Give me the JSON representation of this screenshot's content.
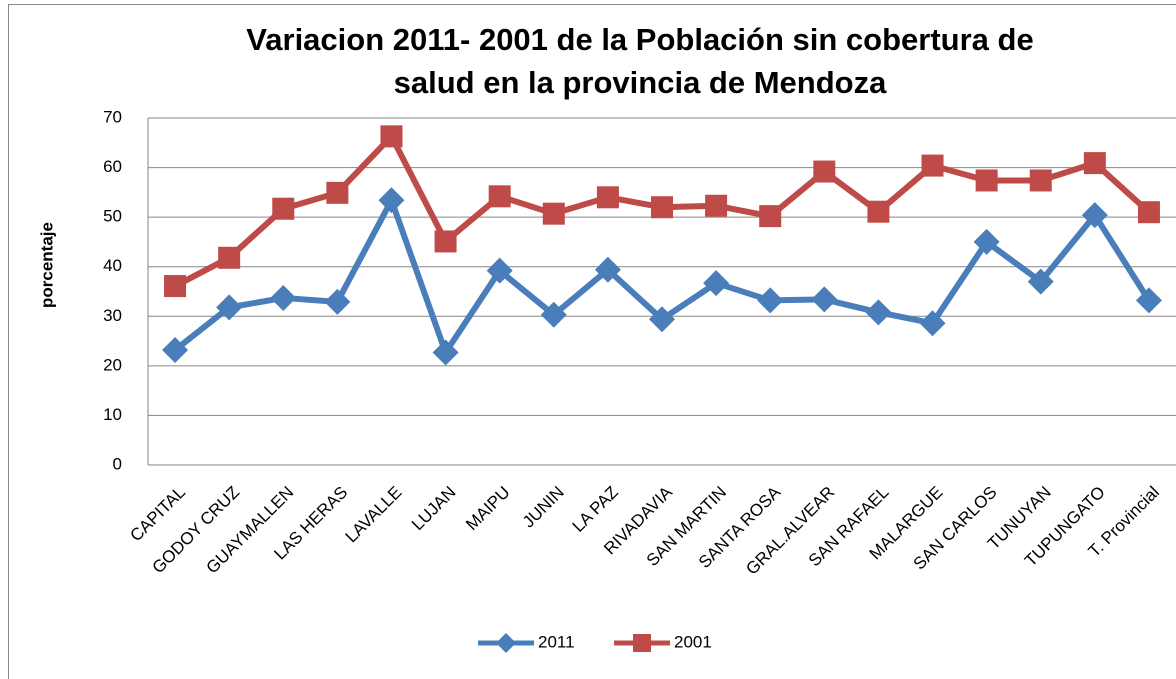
{
  "chart_data": {
    "type": "line",
    "title": [
      "Variacion 2011- 2001 de la Población sin cobertura de",
      "salud en la provincia de Mendoza"
    ],
    "y_label": "porcentaje",
    "categories": [
      "CAPITAL",
      "GODOY CRUZ",
      "GUAYMALLEN",
      "LAS HERAS",
      "LAVALLE",
      "LUJAN",
      "MAIPU",
      "JUNIN",
      "LA PAZ",
      "RIVADAVIA",
      "SAN MARTIN",
      "SANTA ROSA",
      "GRAL.ALVEAR",
      "SAN RAFAEL",
      "MALARGUE",
      "SAN CARLOS",
      "TUNUYAN",
      "TUPUNGATO",
      "T. Provincial"
    ],
    "series": [
      {
        "name": "2011",
        "color": "#4a7ebb",
        "marker": "diamond",
        "values": [
          23.2,
          31.8,
          33.7,
          32.9,
          53.4,
          22.7,
          39.2,
          30.3,
          39.4,
          29.4,
          36.7,
          33.2,
          33.4,
          30.8,
          28.6,
          45,
          37,
          50.4,
          33.2
        ]
      },
      {
        "name": "2001",
        "color": "#be4b48",
        "marker": "square",
        "values": [
          36.1,
          41.8,
          51.7,
          54.9,
          66.3,
          45.1,
          54.2,
          50.7,
          54,
          52,
          52.3,
          50.2,
          59.2,
          51.1,
          60.4,
          57.4,
          57.4,
          60.9,
          51
        ]
      }
    ],
    "ylim": [
      0,
      70
    ],
    "yticks": [
      0,
      10,
      20,
      30,
      40,
      50,
      60,
      70
    ],
    "grid": true,
    "legend": "bottom"
  }
}
